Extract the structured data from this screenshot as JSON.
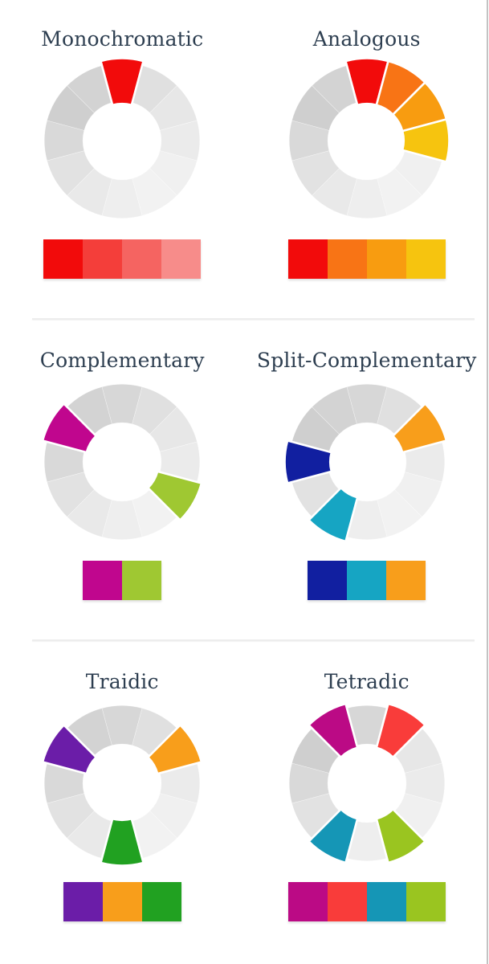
{
  "page": {
    "background": "#ffffff",
    "title_color": "#2d3e50",
    "divider_color": "#ededed",
    "right_border_color": "#c3c3c3"
  },
  "wheel": {
    "segment_count": 12,
    "gray_segments": [
      "#d7d7d7",
      "#e0e0e0",
      "#e7e7e7",
      "#ebebeb",
      "#f0f0f0",
      "#f2f2f2",
      "#eeeeee",
      "#e9e9e9",
      "#e2e2e2",
      "#d9d9d9",
      "#cfcfcf",
      "#d3d3d3"
    ]
  },
  "schemes": [
    {
      "id": "monochromatic",
      "title": "Monochromatic",
      "wheel_highlights": {
        "0": "#f20b0b"
      },
      "swatch": [
        "#f20b0b",
        "#f43e3a",
        "#f56461",
        "#f78c8a"
      ]
    },
    {
      "id": "analogous",
      "title": "Analogous",
      "wheel_highlights": {
        "0": "#f20b0b",
        "1": "#f87415",
        "2": "#f89c10",
        "3": "#f6c40f"
      },
      "swatch": [
        "#f20b0b",
        "#f87415",
        "#f89c10",
        "#f6c40f"
      ]
    },
    {
      "id": "complementary",
      "title": "Complementary",
      "wheel_highlights": {
        "10": "#c0068e",
        "4": "#9fc832"
      },
      "swatch": [
        "#c0068e",
        "#9fc832"
      ]
    },
    {
      "id": "split-complementary",
      "title": "Split-Complementary",
      "wheel_highlights": {
        "2": "#f89e1b",
        "7": "#16a5c3",
        "9": "#111fa0"
      },
      "swatch": [
        "#111fa0",
        "#16a5c3",
        "#f89e1b"
      ]
    },
    {
      "id": "traidic",
      "title": "Traidic",
      "wheel_highlights": {
        "10": "#6b1da8",
        "2": "#f89e1b",
        "6": "#21a121"
      },
      "swatch": [
        "#6b1da8",
        "#f89e1b",
        "#21a121"
      ]
    },
    {
      "id": "tetradic",
      "title": "Tetradic",
      "wheel_highlights": {
        "11": "#bb0a85",
        "1": "#f93c3a",
        "5": "#9ac520",
        "7": "#1596b6"
      },
      "swatch": [
        "#bb0a85",
        "#f93c3a",
        "#1596b6",
        "#9ac520"
      ]
    }
  ]
}
